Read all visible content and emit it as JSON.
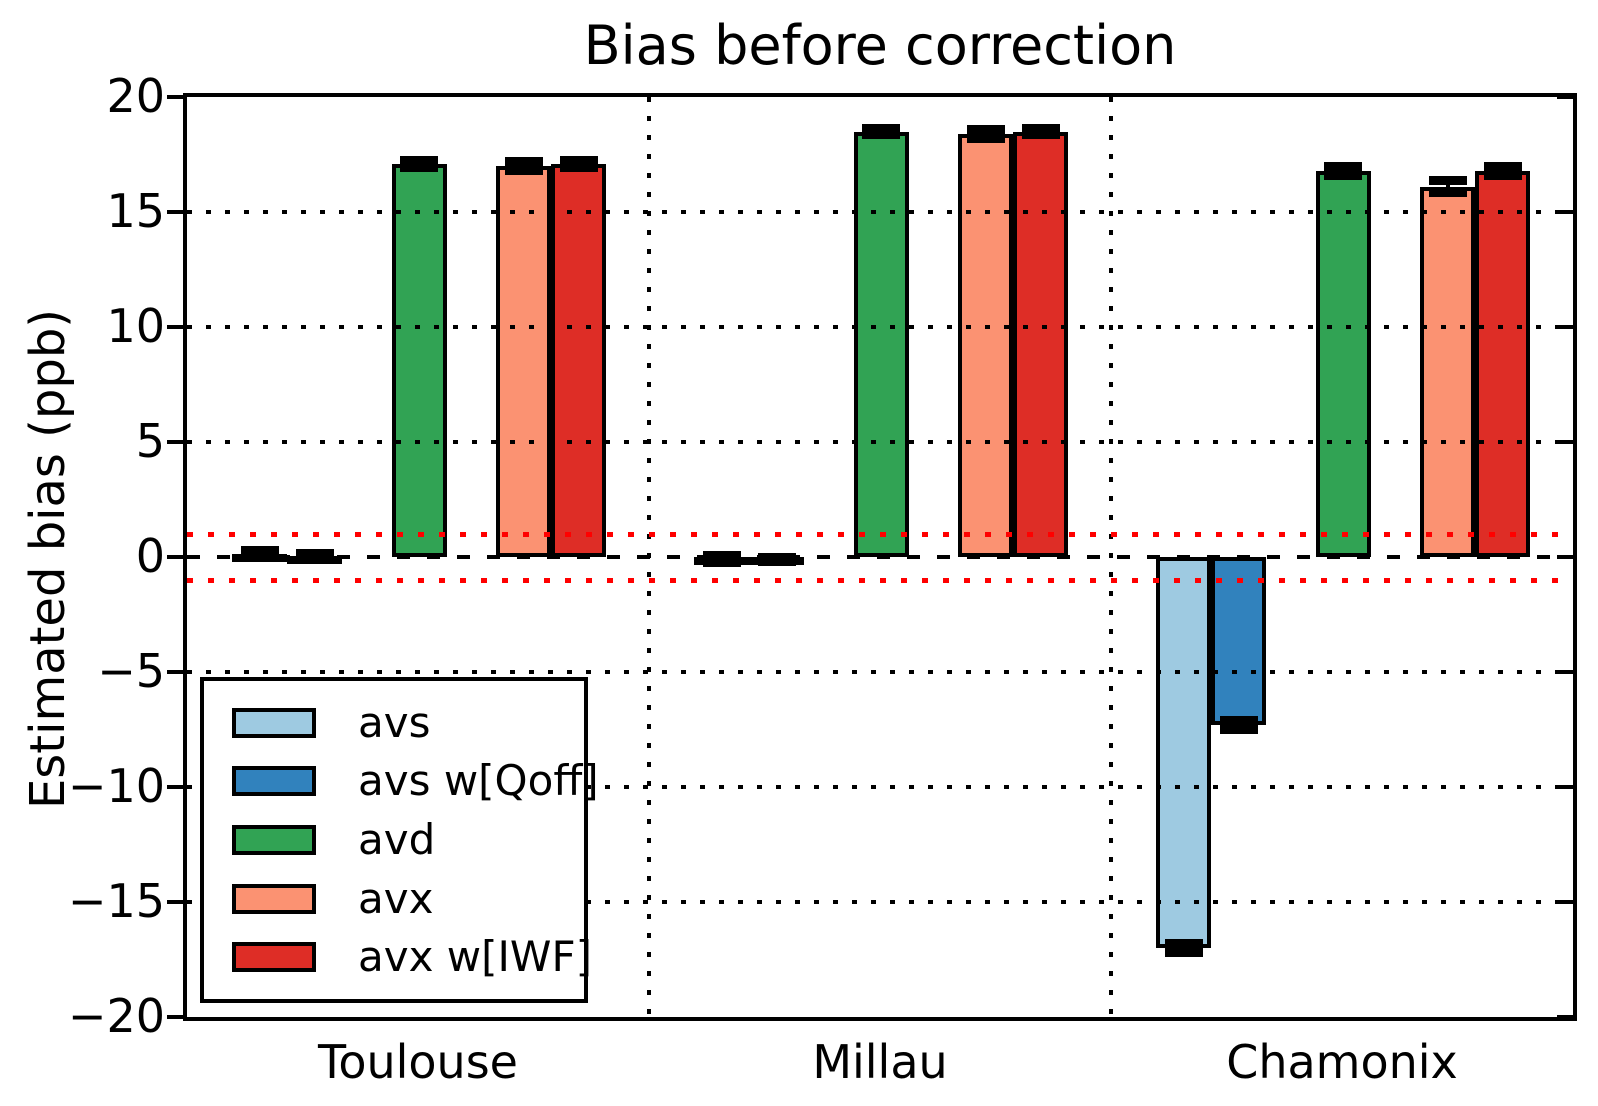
{
  "title": "Bias before correction",
  "axes": {
    "ylabel": "Estimated bias (ppb)",
    "ytick_labels": [
      "20",
      "15",
      "10",
      "5",
      "0",
      "−5",
      "−10",
      "−15",
      "−20"
    ],
    "ytick_values": [
      20,
      15,
      10,
      5,
      0,
      -5,
      -10,
      -15,
      -20
    ]
  },
  "chart_data": {
    "type": "bar",
    "title": "Bias before correction",
    "xlabel": "",
    "ylabel": "Estimated bias (ppb)",
    "categories": [
      "Toulouse",
      "Millau",
      "Chamonix"
    ],
    "series": [
      {
        "name": "avs",
        "color": "#9ECAE1",
        "values": [
          0.15,
          -0.1,
          -17.0
        ],
        "errors": [
          0.15,
          0.15,
          0.2
        ]
      },
      {
        "name": "avs w[Qoff]",
        "color": "#3182BD",
        "values": [
          0.05,
          -0.1,
          -7.3
        ],
        "errors": [
          0.1,
          0.1,
          0.2
        ]
      },
      {
        "name": "avd",
        "color": "#31A354",
        "values": [
          17.1,
          18.5,
          16.8
        ],
        "errors": [
          0.15,
          0.15,
          0.2
        ]
      },
      {
        "name": "avx",
        "color": "#FB9272",
        "values": [
          17.0,
          18.4,
          16.1
        ],
        "errors": [
          0.2,
          0.2,
          0.25
        ]
      },
      {
        "name": "avx w[IWF]",
        "color": "#DE2D26",
        "values": [
          17.1,
          18.5,
          16.8
        ],
        "errors": [
          0.15,
          0.15,
          0.2
        ]
      }
    ],
    "ylim": [
      -20,
      20
    ],
    "yticks": [
      20,
      15,
      10,
      5,
      0,
      -5,
      -10,
      -15,
      -20
    ],
    "grid": {
      "horizontal_dotted_at": [
        15,
        10,
        5,
        -5,
        -10,
        -15
      ],
      "horizontal_dashed_at": [
        0
      ],
      "vertical_separators": true,
      "grid_above_bars": true
    },
    "reference_lines": [
      {
        "y": 1,
        "color": "#FF0000",
        "style": "dotted"
      },
      {
        "y": -1,
        "color": "#FF0000",
        "style": "dotted"
      }
    ],
    "legend": {
      "position": "lower left",
      "entries": [
        "avs",
        "avs w[Qoff]",
        "avd",
        "avx",
        "avx w[IWF]"
      ]
    },
    "error_bars": true
  }
}
